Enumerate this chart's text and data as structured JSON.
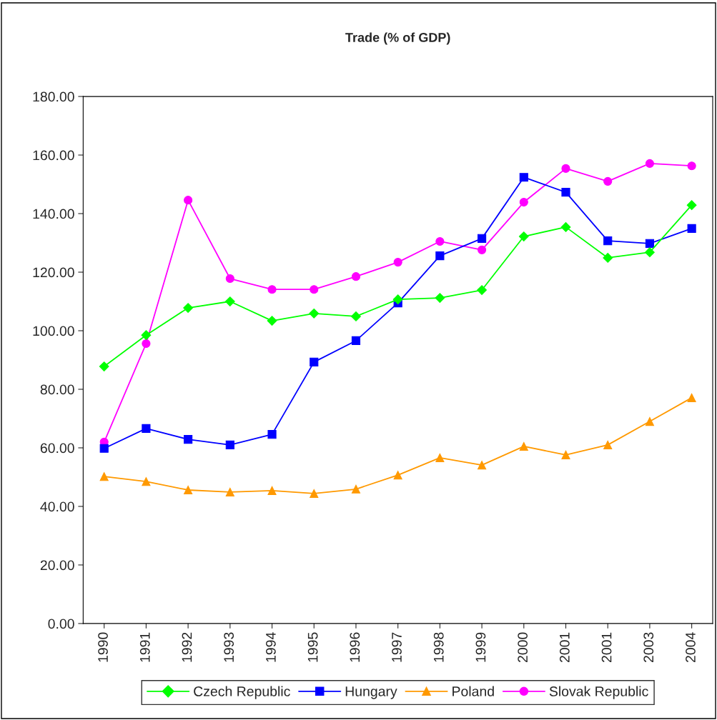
{
  "chart_data": {
    "type": "line",
    "title": "Trade (% of GDP)",
    "categories": [
      "1990",
      "1991",
      "1992",
      "1993",
      "1994",
      "1995",
      "1996",
      "1997",
      "1998",
      "1999",
      "2000",
      "2001",
      "2001",
      "2003",
      "2004"
    ],
    "series": [
      {
        "name": "Czech Republic",
        "color": "#00ff00",
        "marker": "diamond",
        "values": [
          87.8,
          98.5,
          107.8,
          110.0,
          103.4,
          105.9,
          104.9,
          110.7,
          111.2,
          113.9,
          132.2,
          135.4,
          124.9,
          126.8,
          142.9
        ]
      },
      {
        "name": "Hungary",
        "color": "#0000ff",
        "marker": "square",
        "values": [
          59.8,
          66.6,
          62.9,
          61.0,
          64.6,
          89.3,
          96.6,
          109.5,
          125.6,
          131.5,
          152.4,
          147.3,
          130.7,
          129.8,
          134.9
        ]
      },
      {
        "name": "Poland",
        "color": "#ff9900",
        "marker": "triangle",
        "values": [
          50.2,
          48.5,
          45.6,
          44.9,
          45.4,
          44.4,
          45.9,
          50.7,
          56.6,
          54.1,
          60.5,
          57.6,
          61.0,
          69.0,
          77.1
        ]
      },
      {
        "name": "Slovak Republic",
        "color": "#ff00ff",
        "marker": "circle",
        "values": [
          62.0,
          95.6,
          144.6,
          117.8,
          114.1,
          114.1,
          118.5,
          123.4,
          130.5,
          127.6,
          143.9,
          155.4,
          151.0,
          157.1,
          156.3
        ]
      }
    ],
    "ylim": [
      0,
      180
    ],
    "yticks": [
      {
        "value": 0,
        "label": "0.00"
      },
      {
        "value": 20,
        "label": "20.00"
      },
      {
        "value": 40,
        "label": "40.00"
      },
      {
        "value": 60,
        "label": "60.00"
      },
      {
        "value": 80,
        "label": "80.00"
      },
      {
        "value": 100,
        "label": "100.00"
      },
      {
        "value": 120,
        "label": "120.00"
      },
      {
        "value": 140,
        "label": "140.00"
      },
      {
        "value": 160,
        "label": "160.00"
      },
      {
        "value": 180,
        "label": "180.00"
      }
    ],
    "grid": false,
    "legend": "bottom",
    "line_style": "solid"
  }
}
